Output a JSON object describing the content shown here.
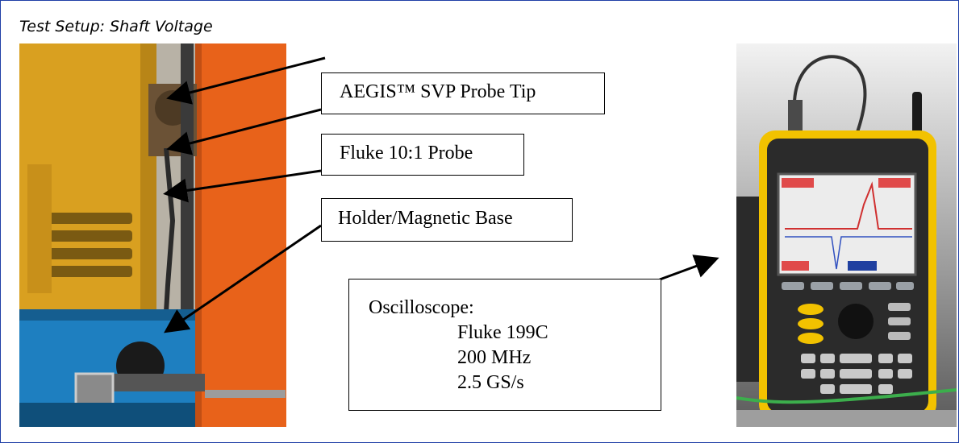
{
  "title": "Test Setup: Shaft Voltage",
  "callouts": {
    "probe_tip": "AEGIS™ SVP Probe Tip",
    "fluke_probe": "Fluke 10:1 Probe",
    "holder": "Holder/Magnetic Base",
    "oscilloscope": {
      "heading": "Oscilloscope:",
      "model": "Fluke 199C",
      "bandwidth": "200 MHz",
      "sample_rate": "2.5 GS/s"
    }
  },
  "colors": {
    "frame_border": "#1f3fa6",
    "motor_yellow": "#d9a020",
    "motor_orange": "#e8621a",
    "base_blue": "#1e7fc0",
    "scope_yellow": "#f2c200"
  }
}
